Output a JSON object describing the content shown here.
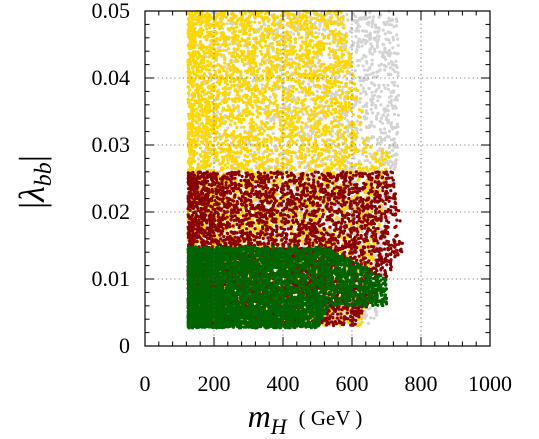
{
  "chart_data": {
    "type": "scatter",
    "title": "",
    "xlabel": {
      "symbol": "m",
      "subscript": "H",
      "unit": "( GeV )"
    },
    "ylabel": {
      "symbol": "λ",
      "subscript": "bb",
      "bars": "|"
    },
    "xlim": [
      0,
      1000
    ],
    "ylim": [
      0,
      0.05
    ],
    "x_ticks": [
      0,
      200,
      400,
      600,
      800,
      1000
    ],
    "x_tick_labels": [
      "0",
      "200",
      "400",
      "600",
      "800",
      "1000"
    ],
    "y_ticks": [
      0,
      0.01,
      0.02,
      0.03,
      0.04,
      0.05
    ],
    "y_tick_labels": [
      "0",
      "0.01",
      "0.02",
      "0.03",
      "0.04",
      "0.05"
    ],
    "grid": true,
    "grid_style": "dotted",
    "legend": "none",
    "series": [
      {
        "color": "#d3d3d3",
        "region": {
          "x_min": 125,
          "x_max": 735,
          "y_min": 0.003,
          "y_max": 0.05
        }
      },
      {
        "color": "#ffd700",
        "region": {
          "x_min": 125,
          "x_max": 720,
          "y_min": 0.003,
          "y_max": 0.05
        }
      },
      {
        "color": "#8b0000",
        "region": {
          "x_min": 125,
          "x_max": 750,
          "y_min": 0.003,
          "y_max": 0.026
        }
      },
      {
        "color": "#006400",
        "region": {
          "x_min": 125,
          "x_max": 700,
          "y_min": 0.0027,
          "y_max": 0.0148
        }
      }
    ]
  }
}
